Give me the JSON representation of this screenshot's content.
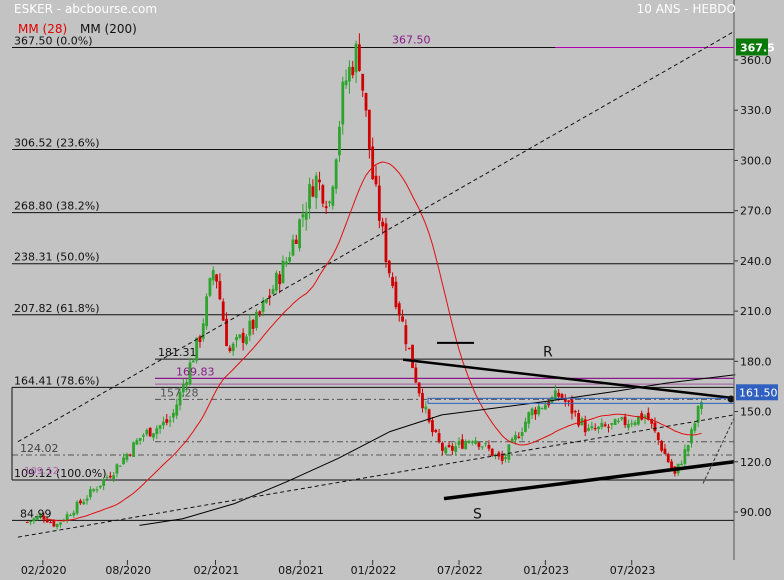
{
  "header": {
    "title": "ESKER - abcbourse.com",
    "period": "10 ANS - HEBDO",
    "ma_short": "MM (28)",
    "ma_long": "MM (200)"
  },
  "colors": {
    "background": "#c3c3c3",
    "up_candle": "#2ea42e",
    "down_candle": "#d10000",
    "ma_short": "#e01010",
    "ma_long": "#000000",
    "fib_label": "#8a1a8a",
    "last_price_badge": "#2f5fbf",
    "high_badge": "#0a7a0a"
  },
  "chart_data": {
    "type": "candlestick",
    "title": "ESKER",
    "timeframe": "weekly",
    "xlabel": "",
    "ylabel": "",
    "ylim": [
      78,
      377
    ],
    "y_ticks": [
      90.0,
      120.0,
      150.0,
      180.0,
      210.0,
      240.0,
      270.0,
      300.0,
      330.0,
      360.0
    ],
    "x_ticks": [
      "02/2020",
      "08/2020",
      "02/2021",
      "08/2021",
      "01/2022",
      "07/2022",
      "01/2023",
      "07/2023"
    ],
    "last_price": "161.50",
    "high_marker": "367.5",
    "high_label": "367.50",
    "ohlc_approx": [
      {
        "date": "2020-01",
        "close": 84
      },
      {
        "date": "2020-02",
        "close": 88
      },
      {
        "date": "2020-03",
        "close": 82
      },
      {
        "date": "2020-05",
        "close": 98
      },
      {
        "date": "2020-07",
        "close": 115
      },
      {
        "date": "2020-09",
        "close": 136
      },
      {
        "date": "2020-11",
        "close": 145
      },
      {
        "date": "2021-01",
        "close": 195
      },
      {
        "date": "2021-02",
        "close": 238
      },
      {
        "date": "2021-03",
        "close": 185
      },
      {
        "date": "2021-05",
        "close": 205
      },
      {
        "date": "2021-07",
        "close": 240
      },
      {
        "date": "2021-09",
        "close": 290
      },
      {
        "date": "2021-10",
        "close": 275
      },
      {
        "date": "2021-11",
        "close": 345
      },
      {
        "date": "2021-12",
        "close": 367.5
      },
      {
        "date": "2022-01",
        "close": 290
      },
      {
        "date": "2022-02",
        "close": 240
      },
      {
        "date": "2022-03",
        "close": 205
      },
      {
        "date": "2022-04",
        "close": 170
      },
      {
        "date": "2022-05",
        "close": 140
      },
      {
        "date": "2022-06",
        "close": 125
      },
      {
        "date": "2022-08",
        "close": 135
      },
      {
        "date": "2022-10",
        "close": 120
      },
      {
        "date": "2022-12",
        "close": 150
      },
      {
        "date": "2023-02",
        "close": 160
      },
      {
        "date": "2023-04",
        "close": 138
      },
      {
        "date": "2023-06",
        "close": 142
      },
      {
        "date": "2023-08",
        "close": 148
      },
      {
        "date": "2023-10",
        "close": 112
      },
      {
        "date": "2023-11",
        "close": 132
      },
      {
        "date": "2023-12",
        "close": 161.5
      }
    ],
    "fibonacci": [
      {
        "label": "367.50  (0.0%)",
        "value": 367.5
      },
      {
        "label": "306.52  (23.6%)",
        "value": 306.52
      },
      {
        "label": "268.80  (38.2%)",
        "value": 268.8
      },
      {
        "label": "238.31  (50.0%)",
        "value": 238.31
      },
      {
        "label": "207.82  (61.8%)",
        "value": 207.82
      },
      {
        "label": "164.41  (78.6%)",
        "value": 164.41
      },
      {
        "label": "109.12  (100.0%)",
        "value": 109.12
      }
    ],
    "horizontal_levels": [
      {
        "label": "181.31",
        "value": 181.31
      },
      {
        "label": "169.83",
        "value": 169.83
      },
      {
        "label": "157.28",
        "value": 157.28
      },
      {
        "label": "124.02",
        "value": 124.02
      },
      {
        "label": "84.99",
        "value": 84.99
      }
    ],
    "annotations": [
      {
        "text": "R"
      },
      {
        "text": "S"
      },
      {
        "text": "109.12"
      }
    ]
  }
}
